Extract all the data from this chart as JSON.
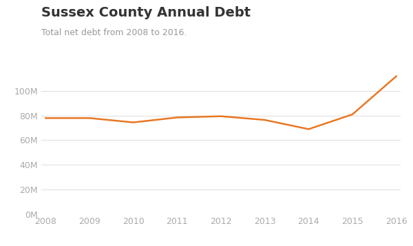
{
  "title": "Sussex County Annual Debt",
  "subtitle": "Total net debt from 2008 to 2016.",
  "years": [
    2008,
    2009,
    2010,
    2011,
    2012,
    2013,
    2014,
    2015,
    2016
  ],
  "values": [
    78000000,
    78000000,
    74500000,
    78500000,
    79500000,
    76500000,
    69000000,
    81000000,
    112000000
  ],
  "line_color": "#E87722",
  "line_width": 1.8,
  "bg_color": "#ffffff",
  "grid_color": "#dddddd",
  "title_fontsize": 14,
  "subtitle_fontsize": 9,
  "tick_fontsize": 9,
  "ylim": [
    0,
    120000000
  ],
  "yticks": [
    0,
    20000000,
    40000000,
    60000000,
    80000000,
    100000000
  ],
  "xticks": [
    2008,
    2009,
    2010,
    2011,
    2012,
    2013,
    2014,
    2015,
    2016
  ],
  "title_color": "#333333",
  "subtitle_color": "#999999",
  "tick_color": "#aaaaaa"
}
